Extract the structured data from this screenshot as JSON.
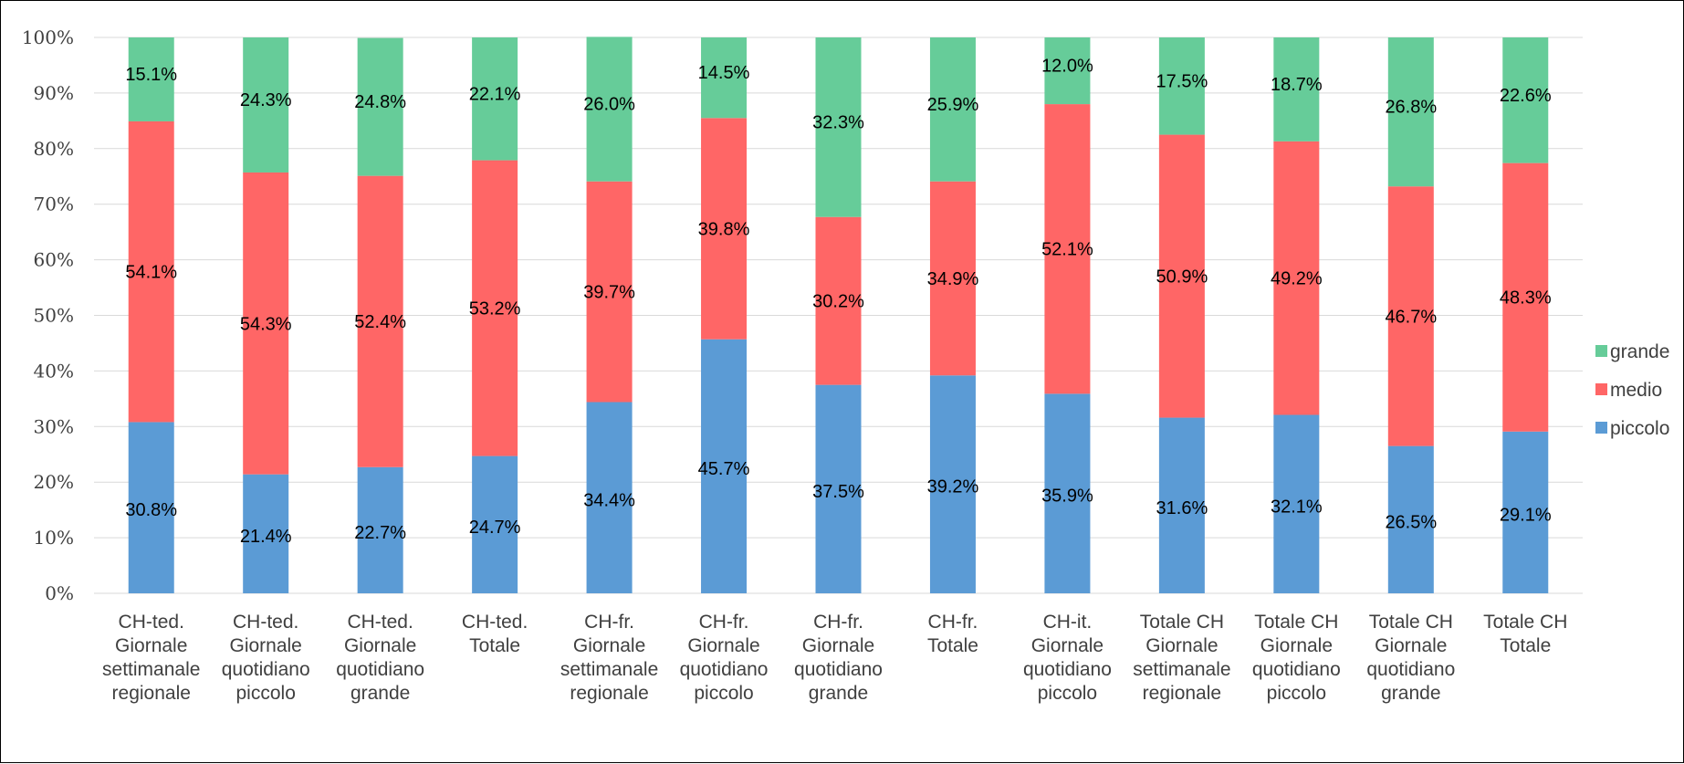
{
  "chart_data": {
    "type": "bar",
    "stacked": true,
    "percent_stacked": true,
    "categories": [
      [
        "CH-ted.",
        "Giornale",
        "settimanale",
        "regionale"
      ],
      [
        "CH-ted.",
        "Giornale",
        "quotidiano",
        "piccolo"
      ],
      [
        "CH-ted.",
        "Giornale",
        "quotidiano",
        "grande"
      ],
      [
        "CH-ted.",
        "Totale"
      ],
      [
        "CH-fr.",
        "Giornale",
        "settimanale",
        "regionale"
      ],
      [
        "CH-fr.",
        "Giornale",
        "quotidiano",
        "piccolo"
      ],
      [
        "CH-fr.",
        "Giornale",
        "quotidiano",
        "grande"
      ],
      [
        "CH-fr.",
        "Totale"
      ],
      [
        "CH-it.",
        "Giornale",
        "quotidiano",
        "piccolo"
      ],
      [
        "Totale CH",
        "Giornale",
        "settimanale",
        "regionale"
      ],
      [
        "Totale CH",
        "Giornale",
        "quotidiano",
        "piccolo"
      ],
      [
        "Totale CH",
        "Giornale",
        "quotidiano",
        "grande"
      ],
      [
        "Totale CH",
        "Totale"
      ]
    ],
    "series": [
      {
        "name": "piccolo",
        "color": "#5b9bd5",
        "values": [
          30.8,
          21.4,
          22.7,
          24.7,
          34.4,
          45.7,
          37.5,
          39.2,
          35.9,
          31.6,
          32.1,
          26.5,
          29.1
        ],
        "labels": [
          "30.8%",
          "21.4%",
          "22.7%",
          "24.7%",
          "34.4%",
          "45.7%",
          "37.5%",
          "39.2%",
          "35.9%",
          "31.6%",
          "32.1%",
          "26.5%",
          "29.1%"
        ]
      },
      {
        "name": "medio",
        "color": "#ff6666",
        "values": [
          54.1,
          54.3,
          52.4,
          53.2,
          39.7,
          39.8,
          30.2,
          34.9,
          52.1,
          50.9,
          49.2,
          46.7,
          48.3
        ],
        "labels": [
          "54.1%",
          "54.3%",
          "52.4%",
          "53.2%",
          "39.7%",
          "39.8%",
          "30.2%",
          "34.9%",
          "52.1%",
          "50.9%",
          "49.2%",
          "46.7%",
          "48.3%"
        ]
      },
      {
        "name": "grande",
        "color": "#66cc99",
        "values": [
          15.1,
          24.3,
          24.8,
          22.1,
          26.0,
          14.5,
          32.3,
          25.9,
          12.0,
          17.5,
          18.7,
          26.8,
          22.6
        ],
        "labels": [
          "15.1%",
          "24.3%",
          "24.8%",
          "22.1%",
          "26.0%",
          "14.5%",
          "32.3%",
          "25.9%",
          "12.0%",
          "17.5%",
          "18.7%",
          "26.8%",
          "22.6%"
        ]
      }
    ],
    "yticks": [
      "0%",
      "10%",
      "20%",
      "30%",
      "40%",
      "50%",
      "60%",
      "70%",
      "80%",
      "90%",
      "100%"
    ],
    "ylim": [
      0,
      100
    ],
    "grid": true,
    "legend": {
      "position": "right",
      "order": [
        "grande",
        "medio",
        "piccolo"
      ]
    },
    "gridline_color": "#d9d9d9"
  }
}
